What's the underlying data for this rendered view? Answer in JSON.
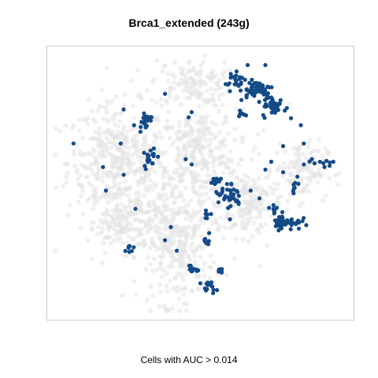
{
  "chart_data": {
    "type": "scatter",
    "title": "Brca1_extended (243g)",
    "xlabel": "Cells with AUC > 0.014",
    "ylabel": "",
    "grid": false,
    "legend": "none",
    "xlim": [
      0,
      100
    ],
    "ylim": [
      0,
      100
    ],
    "background_color": "#e3e3e3",
    "highlight_color": "#134b87",
    "frame_color": "#cccccc",
    "background_clusters": [
      {
        "cx": 22,
        "cy": 58,
        "rx": 17,
        "ry": 22,
        "n": 420
      },
      {
        "cx": 49,
        "cy": 62,
        "rx": 13,
        "ry": 16,
        "n": 240
      },
      {
        "cx": 47,
        "cy": 88,
        "rx": 14,
        "ry": 9,
        "n": 140
      },
      {
        "cx": 42,
        "cy": 27,
        "rx": 13,
        "ry": 23,
        "n": 320
      },
      {
        "cx": 25,
        "cy": 34,
        "rx": 13,
        "ry": 10,
        "n": 150
      },
      {
        "cx": 66,
        "cy": 42,
        "rx": 9,
        "ry": 13,
        "n": 150
      },
      {
        "cx": 84,
        "cy": 55,
        "rx": 9,
        "ry": 11,
        "n": 130
      },
      {
        "cx": 50,
        "cy": 48,
        "rx": 30,
        "ry": 32,
        "n": 160
      }
    ],
    "highlight_clusters": [
      {
        "cx": 69,
        "cy": 86,
        "rx": 6,
        "ry": 4,
        "n": 55
      },
      {
        "cx": 75,
        "cy": 79,
        "rx": 4,
        "ry": 4,
        "n": 40
      },
      {
        "cx": 62,
        "cy": 90,
        "rx": 4,
        "ry": 3,
        "n": 18
      },
      {
        "cx": 64,
        "cy": 76,
        "rx": 2,
        "ry": 2,
        "n": 8
      },
      {
        "cx": 79,
        "cy": 35,
        "rx": 5,
        "ry": 3,
        "n": 45
      },
      {
        "cx": 75,
        "cy": 40,
        "rx": 1.5,
        "ry": 2,
        "n": 8
      },
      {
        "cx": 82,
        "cy": 50,
        "rx": 1.5,
        "ry": 3,
        "n": 8
      },
      {
        "cx": 59,
        "cy": 45,
        "rx": 5,
        "ry": 6,
        "n": 35
      },
      {
        "cx": 55,
        "cy": 51,
        "rx": 3,
        "ry": 2,
        "n": 10
      },
      {
        "cx": 52,
        "cy": 38,
        "rx": 1.5,
        "ry": 2,
        "n": 6
      },
      {
        "cx": 33,
        "cy": 60,
        "rx": 2,
        "ry": 4,
        "n": 18
      },
      {
        "cx": 31,
        "cy": 74,
        "rx": 2.5,
        "ry": 3,
        "n": 22
      },
      {
        "cx": 53,
        "cy": 10,
        "rx": 2.5,
        "ry": 2,
        "n": 16
      },
      {
        "cx": 48,
        "cy": 17,
        "rx": 2,
        "ry": 2,
        "n": 10
      },
      {
        "cx": 52,
        "cy": 28,
        "rx": 1.2,
        "ry": 2,
        "n": 7
      },
      {
        "cx": 57,
        "cy": 16,
        "rx": 1.5,
        "ry": 1.5,
        "n": 6
      },
      {
        "cx": 26,
        "cy": 25,
        "rx": 1.5,
        "ry": 2,
        "n": 7
      },
      {
        "cx": 90,
        "cy": 58,
        "rx": 6,
        "ry": 2,
        "n": 8
      }
    ],
    "highlight_scattered_points": [
      [
        7,
        65
      ],
      [
        17,
        56
      ],
      [
        18,
        47
      ],
      [
        24,
        53
      ],
      [
        23,
        65
      ],
      [
        24,
        78
      ],
      [
        38,
        84
      ],
      [
        46,
        75
      ],
      [
        47,
        57
      ],
      [
        45,
        59
      ],
      [
        47,
        77
      ],
      [
        28,
        40
      ],
      [
        60,
        36
      ],
      [
        63,
        45
      ],
      [
        67,
        47
      ],
      [
        70,
        44
      ],
      [
        72,
        55
      ],
      [
        74,
        58
      ],
      [
        78,
        54
      ],
      [
        85,
        57
      ],
      [
        92,
        56
      ],
      [
        95,
        58
      ],
      [
        40,
        33
      ],
      [
        38,
        28
      ],
      [
        42,
        24
      ],
      [
        60,
        85
      ],
      [
        66,
        95
      ],
      [
        72,
        95
      ],
      [
        84,
        72
      ],
      [
        85,
        65
      ],
      [
        70,
        88
      ],
      [
        78,
        64
      ]
    ]
  }
}
